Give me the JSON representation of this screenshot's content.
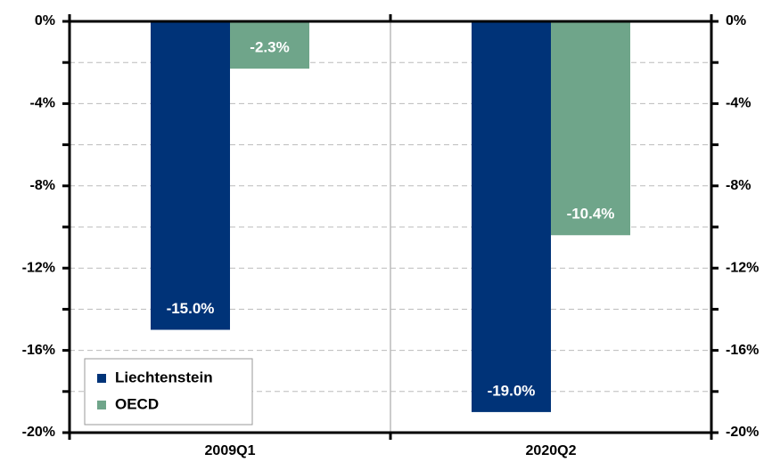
{
  "chart_data": {
    "type": "bar",
    "categories": [
      "2009Q1",
      "2020Q2"
    ],
    "series": [
      {
        "name": "Liechtenstein",
        "color": "#003378",
        "values": [
          -15.0,
          -19.0
        ],
        "value_labels": [
          "-15.0%",
          "-19.0%"
        ]
      },
      {
        "name": "OECD",
        "color": "#6fa58a",
        "values": [
          -2.3,
          -10.4
        ],
        "value_labels": [
          "-2.3%",
          "-10.4%"
        ]
      }
    ],
    "ylim": [
      -20,
      0
    ],
    "yticks": [
      {
        "value": -20,
        "label": "-20%"
      },
      {
        "value": -16,
        "label": "-16%"
      },
      {
        "value": -12,
        "label": "-12%"
      },
      {
        "value": -8,
        "label": "-8%"
      },
      {
        "value": -4,
        "label": "-4%"
      },
      {
        "value": 0,
        "label": "0%"
      }
    ],
    "y_minor_ticks": [
      -18,
      -14,
      -10,
      -6,
      -2
    ],
    "grid": true,
    "legend": "lower left"
  }
}
